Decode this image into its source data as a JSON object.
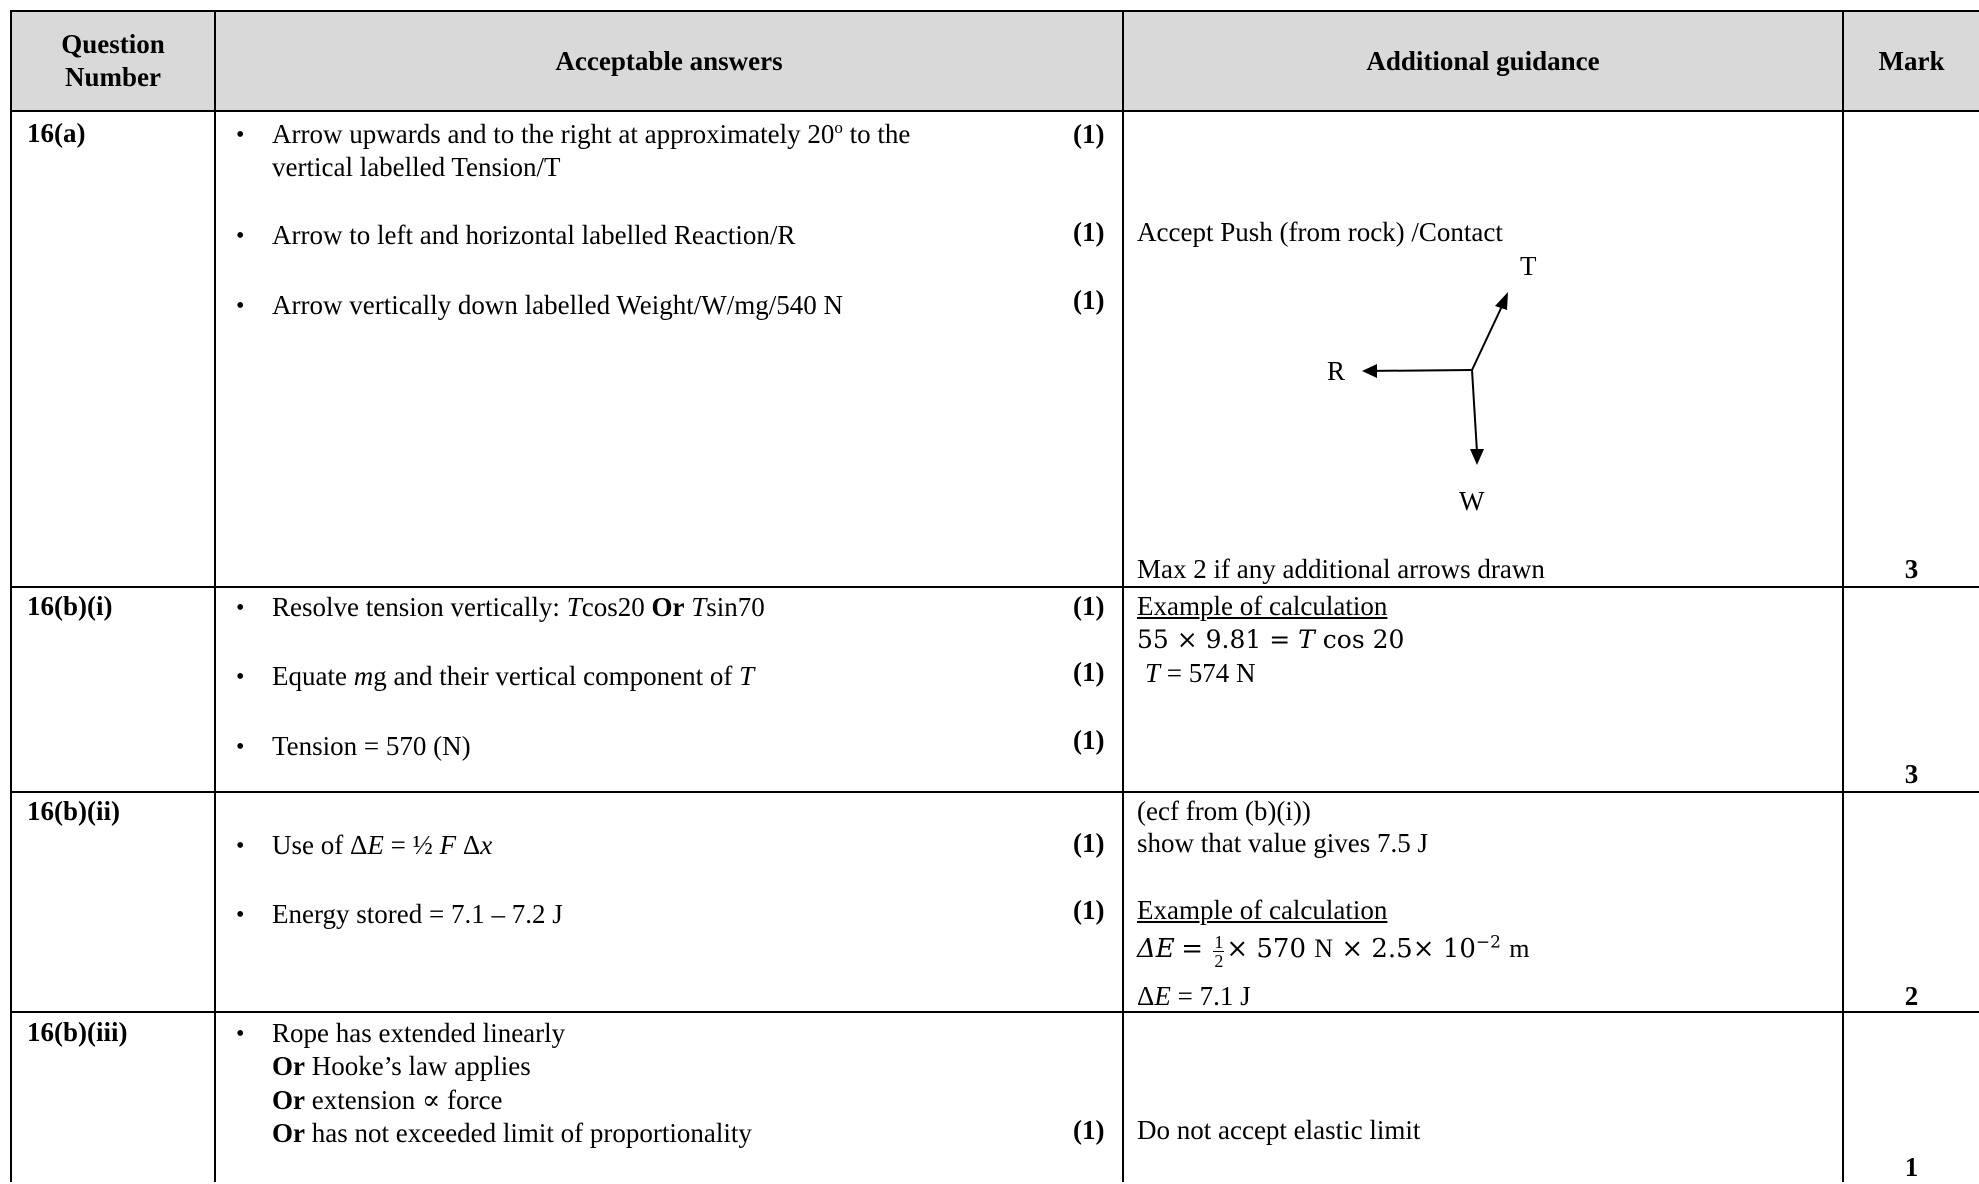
{
  "header": {
    "question_number": "Question\nNumber",
    "acceptable_answers": "Acceptable answers",
    "additional_guidance": "Additional guidance",
    "mark": "Mark"
  },
  "rows": [
    {
      "q": "16(a)",
      "a1": "Arrow upwards and to the right at approximately 20º to the",
      "a1b": "vertical  labelled Tension/T",
      "m1": "(1)",
      "a2": "Arrow to left and horizontal labelled Reaction/R",
      "m2": "(1)",
      "a3": "Arrow vertically down labelled Weight/W/mg/540 N",
      "m3": "(1)",
      "g1": "Accept Push (from rock) /Contact",
      "diagram": {
        "t": "T",
        "r": "R",
        "w": "W"
      },
      "g2": "Max 2 if any additional arrows drawn",
      "mark": "3"
    },
    {
      "q": "16(b)(i)",
      "a1": "Resolve tension vertically: Tcos20 Or Tsin70",
      "m1": "(1)",
      "a2": "Equate mg and their vertical component of T",
      "m2": "(1)",
      "a3": "Tension = 570 (N)",
      "m3": "(1)",
      "g1": "Example of calculation",
      "g2": "55 × 9.81 = T cos 20",
      "g3": "T = 574 N",
      "mark": "3"
    },
    {
      "q": "16(b)(ii)",
      "a1": "Use of ΔE = ½ F Δx",
      "m1": "(1)",
      "a2": "Energy stored = 7.1 – 7.2 J",
      "m2": "(1)",
      "g1": "(ecf from (b)(i))",
      "g2": "show that value gives 7.5 J",
      "g3": "Example of calculation",
      "g4": "ΔE = 1/2 × 570 N × 2.5× 10−2 m",
      "g5": "ΔE = 7.1 J",
      "mark": "2"
    },
    {
      "q": "16(b)(iii)",
      "a1": "Rope has extended linearly",
      "a2": "Or Hooke’s law applies",
      "a3": "Or extension ∝ force",
      "a4": "Or has not exceeded limit of proportionality",
      "m1": "(1)",
      "g1": "Do not accept elastic limit",
      "mark": "1"
    }
  ]
}
